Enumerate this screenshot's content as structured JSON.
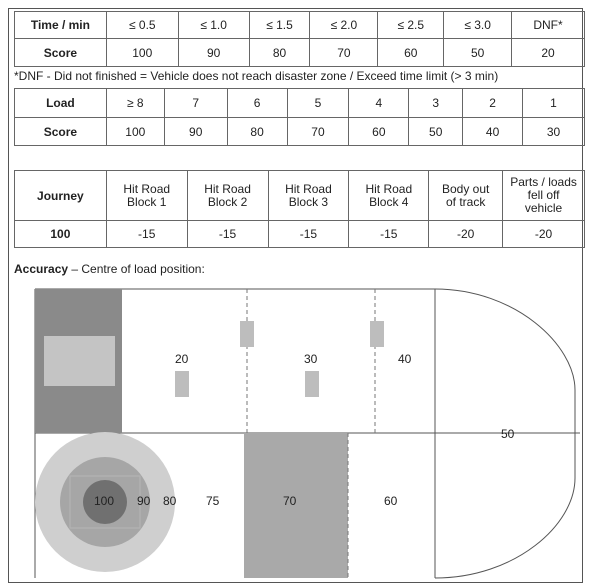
{
  "time_table": {
    "row1": [
      "Time / min",
      "≤ 0.5",
      "≤ 1.0",
      "≤ 1.5",
      "≤ 2.0",
      "≤ 2.5",
      "≤ 3.0",
      "DNF*"
    ],
    "row2": [
      "Score",
      "100",
      "90",
      "80",
      "70",
      "60",
      "50",
      "20"
    ]
  },
  "dnf_note": "*DNF - Did not finished = Vehicle does not reach disaster zone / Exceed time limit (> 3 min)",
  "load_table": {
    "row1": [
      "Load",
      "≥ 8",
      "7",
      "6",
      "5",
      "4",
      "3",
      "2",
      "1"
    ],
    "row2": [
      "Score",
      "100",
      "90",
      "80",
      "70",
      "60",
      "50",
      "40",
      "30"
    ]
  },
  "journey_table": {
    "row1": [
      "Journey",
      "Hit Road Block 1",
      "Hit Road Block 2",
      "Hit Road Block 3",
      "Hit Road Block 4",
      "Body out of track",
      "Parts / loads fell off vehicle"
    ],
    "row2": [
      "100",
      "-15",
      "-15",
      "-15",
      "-15",
      "-20",
      "-20"
    ]
  },
  "accuracy": {
    "heading_bold": "Accuracy",
    "heading_rest": " – Centre of load position:",
    "zones": {
      "z20": "20",
      "z30": "30",
      "z40": "40",
      "z50": "50",
      "z100": "100",
      "z90": "90",
      "z80": "80",
      "z75": "75",
      "z70": "70",
      "z60": "60"
    }
  },
  "colors": {
    "dark_grey": "#8a8a8a",
    "mid_grey": "#ababab",
    "light_grey": "#c9c9c9",
    "darkest": "#6e6e6e"
  }
}
